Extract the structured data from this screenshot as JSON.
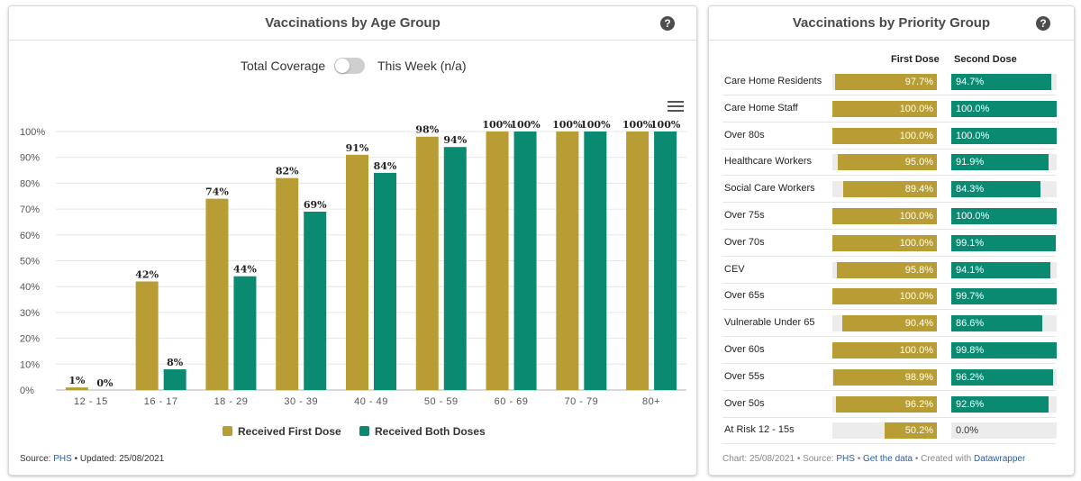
{
  "colors": {
    "first": "#b89d34",
    "second": "#0a8a71"
  },
  "left_panel": {
    "title": "Vaccinations by Age Group",
    "help_icon": "help-circle-icon",
    "toggle": {
      "left_label": "Total Coverage",
      "right_label": "This Week (n/a)",
      "state": "off"
    },
    "menu_icon": "hamburger-menu-icon",
    "legend": [
      "Received First Dose",
      "Received Both Doses"
    ],
    "source_prefix": "Source: ",
    "source_link": "PHS",
    "updated": " • Updated: 25/08/2021"
  },
  "right_panel": {
    "title": "Vaccinations by Priority Group",
    "help_icon": "help-circle-icon",
    "col_first": "First Dose",
    "col_second": "Second Dose",
    "footer": {
      "chart_date": "Chart: 25/08/2021",
      "source_sep": " • Source: ",
      "source_link": "PHS",
      "sep": " • ",
      "get_data": "Get the data",
      "created": " • Created with ",
      "datawrapper": "Datawrapper"
    }
  },
  "chart_data": [
    {
      "type": "bar",
      "categories": [
        "12 - 15",
        "16 - 17",
        "18 - 29",
        "30 - 39",
        "40 - 49",
        "50 - 59",
        "60 - 69",
        "70 - 79",
        "80+"
      ],
      "series": [
        {
          "name": "Received First Dose",
          "values": [
            1,
            42,
            74,
            82,
            91,
            98,
            100,
            100,
            100
          ],
          "labels": [
            "1%",
            "42%",
            "74%",
            "82%",
            "91%",
            "98%",
            "100%",
            "100%",
            "100%"
          ]
        },
        {
          "name": "Received Both Doses",
          "values": [
            0,
            8,
            44,
            69,
            84,
            94,
            100,
            100,
            100
          ],
          "labels": [
            "0%",
            "8%",
            "44%",
            "69%",
            "84%",
            "94%",
            "100%",
            "100%",
            "100%"
          ]
        }
      ],
      "yticks": [
        "0%",
        "10%",
        "20%",
        "30%",
        "40%",
        "50%",
        "60%",
        "70%",
        "80%",
        "90%",
        "100%"
      ],
      "ylim": [
        0,
        100
      ]
    },
    {
      "type": "bar",
      "categories": [
        "Care Home Residents",
        "Care Home Staff",
        "Over 80s",
        "Healthcare Workers",
        "Social Care Workers",
        "Over 75s",
        "Over 70s",
        "CEV",
        "Over 65s",
        "Vulnerable Under 65",
        "Over 60s",
        "Over 55s",
        "Over 50s",
        "At Risk 12 - 15s"
      ],
      "series": [
        {
          "name": "First Dose",
          "values": [
            97.7,
            100.0,
            100.0,
            95.0,
            89.4,
            100.0,
            100.0,
            95.8,
            100.0,
            90.4,
            100.0,
            98.9,
            96.2,
            50.2
          ],
          "labels": [
            "97.7%",
            "100.0%",
            "100.0%",
            "95.0%",
            "89.4%",
            "100.0%",
            "100.0%",
            "95.8%",
            "100.0%",
            "90.4%",
            "100.0%",
            "98.9%",
            "96.2%",
            "50.2%"
          ]
        },
        {
          "name": "Second Dose",
          "values": [
            94.7,
            100.0,
            100.0,
            91.9,
            84.3,
            100.0,
            99.1,
            94.1,
            99.7,
            86.6,
            99.8,
            96.2,
            92.6,
            0.0
          ],
          "labels": [
            "94.7%",
            "100.0%",
            "100.0%",
            "91.9%",
            "84.3%",
            "100.0%",
            "99.1%",
            "94.1%",
            "99.7%",
            "86.6%",
            "99.8%",
            "96.2%",
            "92.6%",
            "0.0%"
          ]
        }
      ],
      "xlim": [
        0,
        100
      ]
    }
  ]
}
